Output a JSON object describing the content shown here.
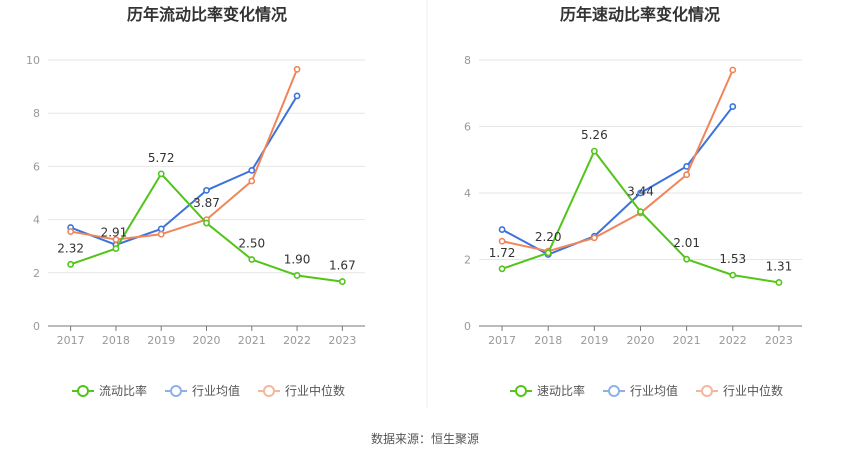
{
  "chart_data": [
    {
      "type": "line",
      "title": "历年流动比率变化情况",
      "categories": [
        "2017",
        "2018",
        "2019",
        "2020",
        "2021",
        "2022",
        "2023"
      ],
      "ylim": [
        0,
        10
      ],
      "yticks": [
        0,
        2,
        4,
        6,
        8,
        10
      ],
      "grid": true,
      "legend": "bottom",
      "series": [
        {
          "name": "流动比率",
          "color": "#52c41a",
          "values": [
            2.32,
            2.91,
            5.72,
            3.87,
            2.5,
            1.9,
            1.67
          ],
          "labels": [
            "2.32",
            "2.91",
            "5.72",
            "3.87",
            "2.50",
            "1.90",
            "1.67"
          ]
        },
        {
          "name": "行业均值",
          "color": "#3b73db",
          "values": [
            3.7,
            3.05,
            3.65,
            5.1,
            5.85,
            8.65,
            null
          ]
        },
        {
          "name": "行业中位数",
          "color": "#f0855a",
          "values": [
            3.55,
            3.25,
            3.45,
            4.0,
            5.45,
            9.65,
            null
          ]
        }
      ]
    },
    {
      "type": "line",
      "title": "历年速动比率变化情况",
      "categories": [
        "2017",
        "2018",
        "2019",
        "2020",
        "2021",
        "2022",
        "2023"
      ],
      "ylim": [
        0,
        8
      ],
      "yticks": [
        0,
        2,
        4,
        6,
        8
      ],
      "grid": true,
      "legend": "bottom",
      "series": [
        {
          "name": "速动比率",
          "color": "#52c41a",
          "values": [
            1.72,
            2.2,
            5.26,
            3.44,
            2.01,
            1.53,
            1.31
          ],
          "labels": [
            "1.72",
            "2.20",
            "5.26",
            "3.44",
            "2.01",
            "1.53",
            "1.31"
          ]
        },
        {
          "name": "行业均值",
          "color": "#3b73db",
          "values": [
            2.9,
            2.15,
            2.7,
            4.0,
            4.8,
            6.6,
            null
          ]
        },
        {
          "name": "行业中位数",
          "color": "#f0855a",
          "values": [
            2.55,
            2.25,
            2.65,
            3.4,
            4.55,
            7.7,
            null
          ]
        }
      ]
    }
  ],
  "footer": {
    "source": "数据来源：恒生聚源"
  }
}
